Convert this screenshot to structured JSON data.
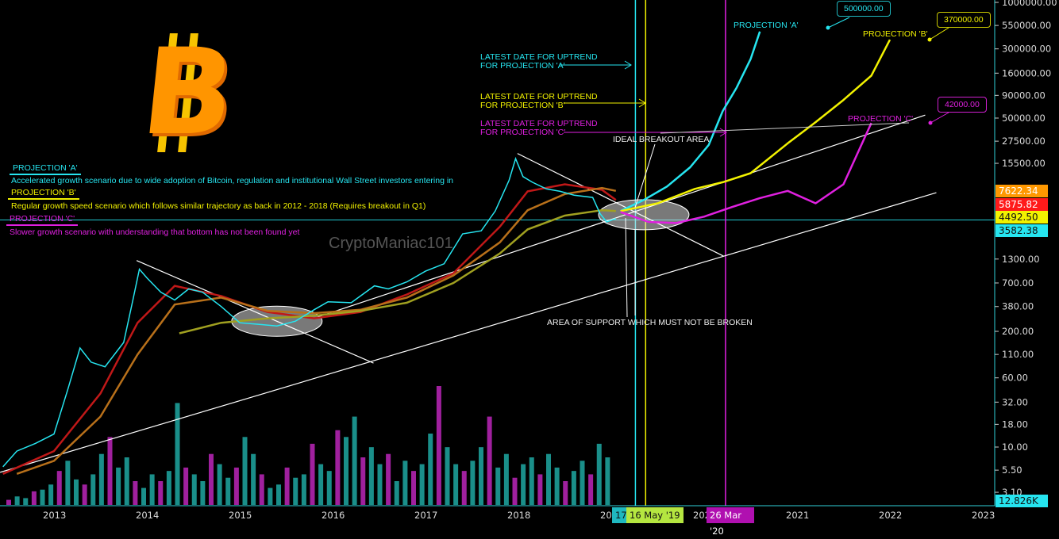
{
  "colors": {
    "cyan": "#26e5f0",
    "yellow": "#f2f200",
    "magenta": "#e020e0",
    "orange": "#ff9800",
    "red": "#ff1a1a",
    "white": "#ffffff",
    "axis": "#2fd0d8"
  },
  "watermark": "CryptoManiac101",
  "legend": {
    "a_title": "PROJECTION 'A'",
    "a_text": "Accelerated growth scenario due to wide adoption of Bitcoin, regulation and institutional Wall Street investors entering in",
    "b_title": "PROJECTION 'B'",
    "b_text": "Regular growth speed scenario which follows similar trajectory as back in 2012 - 2018 (Requires breakout in Q1)",
    "c_title": "PROJECTION 'C'",
    "c_text": "Slower growth scenario with understanding that bottom has not been found yet"
  },
  "annotations": {
    "latest_a": [
      "LATEST DATE FOR UPTREND",
      "FOR PROJECTION 'A'"
    ],
    "latest_b": [
      "LATEST DATE FOR UPTREND",
      "FOR PROJECTION 'B'"
    ],
    "latest_c": [
      "LATEST DATE FOR UPTREND",
      "FOR PROJECTION 'C'"
    ],
    "breakout": "IDEAL BREAKOUT AREA",
    "support": "AREA OF SUPPORT WHICH MUST NOT BE BROKEN",
    "proj_a": "PROJECTION 'A'",
    "proj_b": "PROJECTION 'B'",
    "proj_c": "PROJECTION 'C'",
    "target_a": "500000.00",
    "target_b": "370000.00",
    "target_c": "42000.00"
  },
  "price_labels": [
    {
      "value": "7622.34",
      "bg": "#ff9800",
      "fg": "#ffffff"
    },
    {
      "value": "5875.82",
      "bg": "#ff1a1a",
      "fg": "#ffffff"
    },
    {
      "value": "4492.50",
      "bg": "#f2f200",
      "fg": "#111111"
    },
    {
      "value": "3582.38",
      "bg": "#26e5f0",
      "fg": "#111111"
    }
  ],
  "volume_label": "12.826K",
  "date_labels": {
    "a": "17",
    "b": "16 May '19",
    "c": "26 Mar '20"
  },
  "chart_data": {
    "type": "line",
    "y_scale": "log",
    "ylim": [
      3.1,
      1000000
    ],
    "xlim": [
      2012.42,
      2023.1
    ],
    "y_ticks": [
      "1000000.00",
      "550000.00",
      "300000.00",
      "160000.00",
      "90000.00",
      "50000.00",
      "27500.00",
      "15500.00",
      "1300.00",
      "700.00",
      "380.00",
      "200.00",
      "110.00",
      "60.00",
      "32.00",
      "18.00",
      "10.00",
      "5.50",
      "3.10"
    ],
    "x_ticks": [
      "2013",
      "2014",
      "2015",
      "2016",
      "2017",
      "2018",
      "2019",
      "2020",
      "2021",
      "2022",
      "2023"
    ],
    "grid": false,
    "price": {
      "x": [
        2012.45,
        2012.6,
        2012.8,
        2013.0,
        2013.15,
        2013.28,
        2013.4,
        2013.55,
        2013.75,
        2013.85,
        2013.92,
        2014.0,
        2014.15,
        2014.3,
        2014.45,
        2014.6,
        2014.8,
        2015.0,
        2015.2,
        2015.4,
        2015.6,
        2015.8,
        2015.95,
        2016.2,
        2016.45,
        2016.6,
        2016.8,
        2017.0,
        2017.2,
        2017.4,
        2017.6,
        2017.75,
        2017.9,
        2017.97,
        2018.05,
        2018.15,
        2018.3,
        2018.45,
        2018.6,
        2018.8,
        2018.88,
        2018.95,
        2019.05
      ],
      "y": [
        6,
        9,
        11,
        14,
        45,
        130,
        90,
        80,
        150,
        450,
        1000,
        800,
        550,
        450,
        600,
        550,
        380,
        250,
        240,
        230,
        260,
        350,
        430,
        420,
        650,
        600,
        720,
        950,
        1150,
        2500,
        2700,
        4500,
        10000,
        17500,
        11000,
        9500,
        8000,
        7500,
        6800,
        6400,
        4200,
        3400,
        3700
      ]
    },
    "moving_averages": [
      {
        "color": "#c01818",
        "x": [
          2012.45,
          2013.0,
          2013.5,
          2013.9,
          2014.3,
          2014.8,
          2015.3,
          2015.8,
          2016.3,
          2016.8,
          2017.3,
          2017.8,
          2018.1,
          2018.5,
          2018.9,
          2019.05
        ],
        "y": [
          5,
          9,
          40,
          250,
          650,
          500,
          330,
          280,
          330,
          520,
          900,
          3000,
          7500,
          9000,
          7800,
          6000
        ]
      },
      {
        "color": "#b8701a",
        "x": [
          2012.6,
          2013.0,
          2013.5,
          2013.9,
          2014.3,
          2014.8,
          2015.3,
          2015.8,
          2016.3,
          2016.8,
          2017.3,
          2017.8,
          2018.1,
          2018.5,
          2018.9,
          2019.05
        ],
        "y": [
          5,
          7,
          22,
          110,
          400,
          480,
          340,
          320,
          350,
          480,
          850,
          2000,
          4600,
          7000,
          8200,
          7600
        ]
      },
      {
        "color": "#a0a020",
        "x": [
          2014.35,
          2014.8,
          2015.3,
          2015.8,
          2016.3,
          2016.8,
          2017.3,
          2017.8,
          2018.1,
          2018.5,
          2018.9,
          2019.05
        ],
        "y": [
          190,
          250,
          280,
          300,
          340,
          420,
          700,
          1500,
          2800,
          4000,
          4600,
          4500
        ]
      }
    ],
    "projections": [
      {
        "name": "PROJECTION 'A'",
        "color": "#26e5f0",
        "x": [
          2019.1,
          2019.35,
          2019.6,
          2019.85,
          2020.05,
          2020.2,
          2020.35,
          2020.5,
          2020.6
        ],
        "y": [
          4500,
          6000,
          8500,
          14000,
          25000,
          60000,
          110000,
          230000,
          470000
        ]
      },
      {
        "name": "PROJECTION 'B'",
        "color": "#f2f200",
        "x": [
          2019.1,
          2019.5,
          2019.9,
          2020.2,
          2020.5,
          2020.9,
          2021.2,
          2021.5,
          2021.8,
          2022.0
        ],
        "y": [
          4500,
          5500,
          8000,
          9500,
          12000,
          26000,
          45000,
          80000,
          150000,
          380000
        ]
      },
      {
        "name": "PROJECTION 'C'",
        "color": "#e020e0",
        "x": [
          2019.1,
          2019.4,
          2019.7,
          2020.0,
          2020.3,
          2020.6,
          2020.9,
          2021.2,
          2021.5,
          2021.8
        ],
        "y": [
          4400,
          3400,
          3300,
          3900,
          5000,
          6300,
          7600,
          5500,
          9000,
          44000
        ]
      }
    ],
    "trendlines": [
      {
        "color": "#ffffff",
        "x": [
          2012.42,
          2022.5
        ],
        "y": [
          5.2,
          7250
        ]
      },
      {
        "color": "#ffffff",
        "x": [
          2015.84,
          2022.38
        ],
        "y": [
          290,
          54000
        ]
      },
      {
        "color": "#ffffff",
        "x": [
          2013.89,
          2016.44
        ],
        "y": [
          1250,
          88
        ]
      },
      {
        "color": "#ffffff",
        "x": [
          2017.99,
          2020.21
        ],
        "y": [
          20000,
          1400
        ]
      }
    ],
    "horizontal_line": {
      "value": 3582.38,
      "color": "#26e5f0"
    },
    "vertical_lines": [
      {
        "x": 2019.26,
        "color": "#26e5f0"
      },
      {
        "x": 2019.37,
        "color": "#f2f200"
      },
      {
        "x": 2020.23,
        "color": "#e020e0"
      }
    ],
    "support_zones": [
      {
        "x": 2015.4,
        "y": 260
      },
      {
        "x": 2019.35,
        "y": 4100
      }
    ],
    "volume": [
      3,
      5,
      4,
      8,
      9,
      12,
      20,
      26,
      15,
      12,
      18,
      30,
      40,
      22,
      28,
      14,
      10,
      18,
      14,
      20,
      60,
      22,
      18,
      14,
      30,
      24,
      16,
      22,
      40,
      30,
      18,
      10,
      12,
      22,
      16,
      18,
      36,
      24,
      20,
      44,
      40,
      52,
      28,
      34,
      24,
      30,
      14,
      26,
      20,
      24,
      42,
      70,
      34,
      24,
      20,
      26,
      34,
      52,
      22,
      30,
      16,
      24,
      28,
      18,
      30,
      22,
      14,
      20,
      26,
      18,
      36,
      28
    ]
  }
}
